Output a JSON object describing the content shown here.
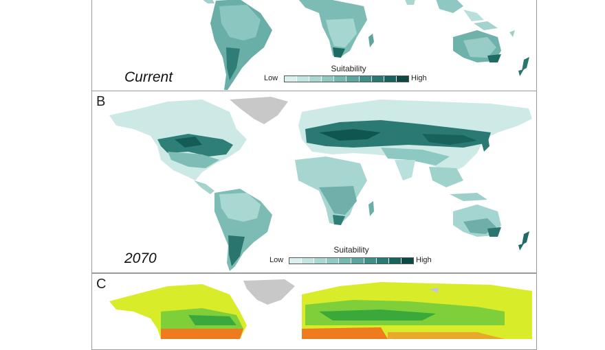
{
  "panels": {
    "a": {
      "label": "",
      "period": "Current"
    },
    "b": {
      "label": "B",
      "period": "2070"
    },
    "c": {
      "label": "C"
    }
  },
  "legend": {
    "title": "Suitability",
    "low": "Low",
    "high": "High",
    "colors": [
      "#d9f0ee",
      "#c2e5e2",
      "#a9d8d4",
      "#8ec9c4",
      "#74b8b2",
      "#5aa59f",
      "#3f8f89",
      "#297a74",
      "#17635d",
      "#0b4a44"
    ]
  },
  "colors": {
    "ocean": "#ffffff",
    "land_low": "#cde9e6",
    "land_mid": "#7fbdb7",
    "land_high": "#1f6e67",
    "greenland": "#c8c8c8",
    "c_yellow": "#d9ec2a",
    "c_green": "#7fcf3a",
    "c_dark_green": "#3aa83a",
    "c_orange": "#f07a1e"
  }
}
